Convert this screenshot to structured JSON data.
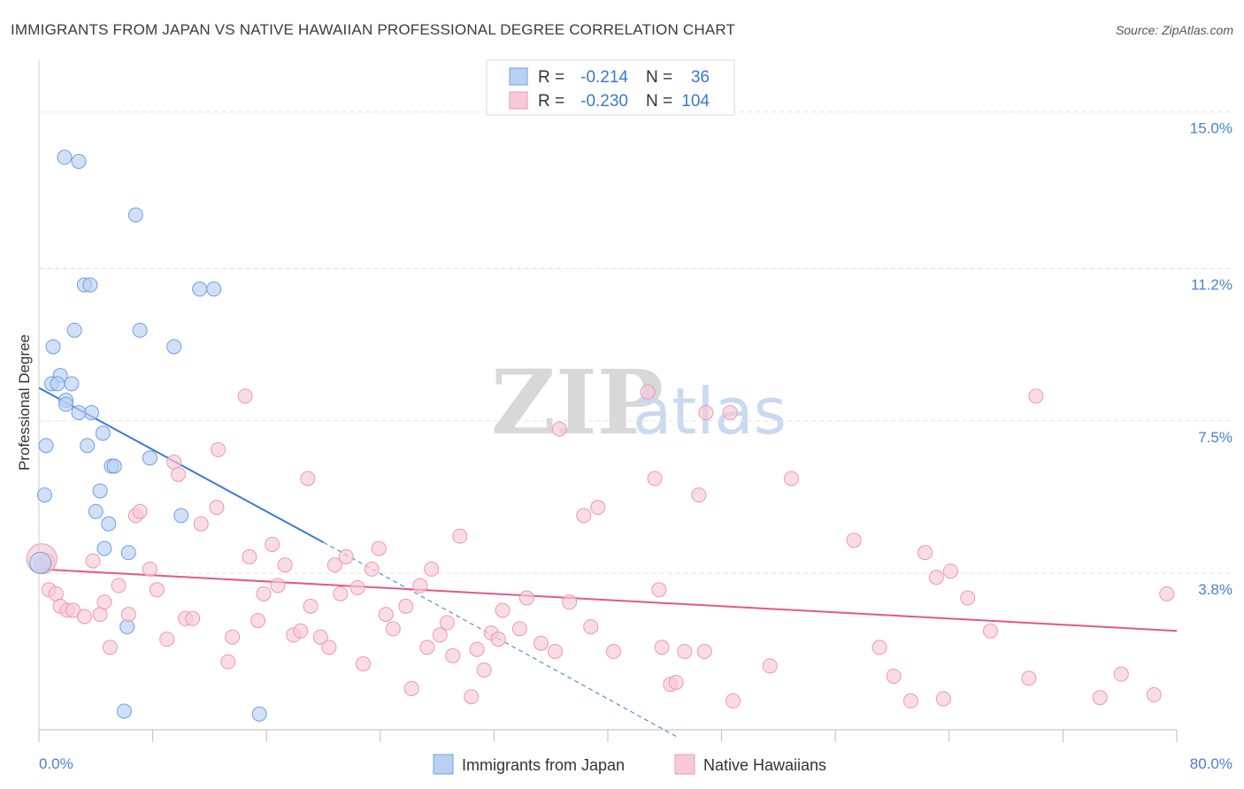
{
  "chart_data": {
    "type": "scatter",
    "title": "IMMIGRANTS FROM JAPAN VS NATIVE HAWAIIAN PROFESSIONAL DEGREE CORRELATION CHART",
    "source": "Source: ZipAtlas.com",
    "ylabel": "Professional Degree",
    "xlabel": "",
    "xlim": [
      0,
      80
    ],
    "ylim": [
      0,
      16
    ],
    "x_tick_labels": [
      "0.0%",
      "80.0%"
    ],
    "y_ticks": [
      3.8,
      7.5,
      11.2,
      15.0
    ],
    "y_tick_labels": [
      "3.8%",
      "7.5%",
      "11.2%",
      "15.0%"
    ],
    "grid": true,
    "legend": {
      "position": "top-center",
      "entries": [
        {
          "r_label": "R =",
          "r_value": "-0.214",
          "n_label": "N =",
          "n_value": "36"
        },
        {
          "r_label": "R =",
          "r_value": "-0.230",
          "n_label": "N =",
          "n_value": "104"
        }
      ]
    },
    "watermark": {
      "zip": "ZIP",
      "atlas": "atlas"
    },
    "series": [
      {
        "name": "Immigrants from Japan",
        "color": "#6fa0e6",
        "fill": "#b8d0f3",
        "line_color": "#3a78d6",
        "trend": {
          "x0": 0,
          "y0": 8.3,
          "x1": 20,
          "y1": 4.55,
          "dash_to_x": 45,
          "dash_to_y": -0.2
        },
        "points": [
          [
            1.8,
            13.9
          ],
          [
            2.8,
            13.8
          ],
          [
            6.8,
            12.5
          ],
          [
            3.2,
            10.8
          ],
          [
            3.6,
            10.8
          ],
          [
            11.3,
            10.7
          ],
          [
            12.3,
            10.7
          ],
          [
            2.5,
            9.7
          ],
          [
            7.1,
            9.7
          ],
          [
            1.0,
            9.3
          ],
          [
            9.5,
            9.3
          ],
          [
            1.5,
            8.6
          ],
          [
            0.9,
            8.4
          ],
          [
            1.3,
            8.4
          ],
          [
            2.3,
            8.4
          ],
          [
            1.9,
            8.0
          ],
          [
            1.9,
            7.9
          ],
          [
            3.7,
            7.7
          ],
          [
            2.8,
            7.7
          ],
          [
            4.5,
            7.2
          ],
          [
            0.5,
            6.9
          ],
          [
            3.4,
            6.9
          ],
          [
            7.8,
            6.6
          ],
          [
            5.1,
            6.4
          ],
          [
            5.3,
            6.4
          ],
          [
            4.3,
            5.8
          ],
          [
            0.4,
            5.7
          ],
          [
            4.0,
            5.3
          ],
          [
            4.9,
            5.0
          ],
          [
            10.0,
            5.2
          ],
          [
            4.6,
            4.4
          ],
          [
            6.3,
            4.3
          ],
          [
            0.2,
            4.0
          ],
          [
            6.2,
            2.5
          ],
          [
            6.0,
            0.45
          ],
          [
            15.5,
            0.38
          ]
        ]
      },
      {
        "name": "Native Hawaiians",
        "color": "#ef97b2",
        "fill": "#f8c9d7",
        "line_color": "#e2578b",
        "trend": {
          "x0": 0,
          "y0": 3.9,
          "x1": 80,
          "y1": 2.4
        },
        "points": [
          [
            0.6,
            4.1
          ],
          [
            0.7,
            3.4
          ],
          [
            1.2,
            3.3
          ],
          [
            1.5,
            3.0
          ],
          [
            2.0,
            2.9
          ],
          [
            2.4,
            2.9
          ],
          [
            3.2,
            2.75
          ],
          [
            3.8,
            4.1
          ],
          [
            4.3,
            2.8
          ],
          [
            4.6,
            3.1
          ],
          [
            5.0,
            2.0
          ],
          [
            5.6,
            3.5
          ],
          [
            6.3,
            2.8
          ],
          [
            6.8,
            5.2
          ],
          [
            7.1,
            5.3
          ],
          [
            7.8,
            3.9
          ],
          [
            8.3,
            3.4
          ],
          [
            9.0,
            2.2
          ],
          [
            9.5,
            6.5
          ],
          [
            9.8,
            6.2
          ],
          [
            10.3,
            2.7
          ],
          [
            10.8,
            2.7
          ],
          [
            11.4,
            5.0
          ],
          [
            12.5,
            5.4
          ],
          [
            12.6,
            6.8
          ],
          [
            13.3,
            1.65
          ],
          [
            13.6,
            2.25
          ],
          [
            14.5,
            8.1
          ],
          [
            14.8,
            4.2
          ],
          [
            15.4,
            2.65
          ],
          [
            15.8,
            3.3
          ],
          [
            16.4,
            4.5
          ],
          [
            16.8,
            3.5
          ],
          [
            17.3,
            4.0
          ],
          [
            17.9,
            2.3
          ],
          [
            18.4,
            2.4
          ],
          [
            18.9,
            6.1
          ],
          [
            19.1,
            3.0
          ],
          [
            19.8,
            2.25
          ],
          [
            20.4,
            2.0
          ],
          [
            20.8,
            4.0
          ],
          [
            21.2,
            3.3
          ],
          [
            21.6,
            4.2
          ],
          [
            22.4,
            3.45
          ],
          [
            22.8,
            1.6
          ],
          [
            23.4,
            3.9
          ],
          [
            23.9,
            4.4
          ],
          [
            24.4,
            2.8
          ],
          [
            24.9,
            2.45
          ],
          [
            25.8,
            3.0
          ],
          [
            26.2,
            1.0
          ],
          [
            26.8,
            3.5
          ],
          [
            27.3,
            2.0
          ],
          [
            27.6,
            3.9
          ],
          [
            28.2,
            2.3
          ],
          [
            28.7,
            2.6
          ],
          [
            29.1,
            1.8
          ],
          [
            29.6,
            4.7
          ],
          [
            30.4,
            0.8
          ],
          [
            30.8,
            1.95
          ],
          [
            31.3,
            1.45
          ],
          [
            31.8,
            2.35
          ],
          [
            32.3,
            2.2
          ],
          [
            32.6,
            2.9
          ],
          [
            33.8,
            2.45
          ],
          [
            34.3,
            3.2
          ],
          [
            35.3,
            2.1
          ],
          [
            36.3,
            1.9
          ],
          [
            36.6,
            7.3
          ],
          [
            37.3,
            3.1
          ],
          [
            38.3,
            5.2
          ],
          [
            38.8,
            2.5
          ],
          [
            39.3,
            5.4
          ],
          [
            40.4,
            1.9
          ],
          [
            42.8,
            8.2
          ],
          [
            43.3,
            6.1
          ],
          [
            43.6,
            3.4
          ],
          [
            43.8,
            2.0
          ],
          [
            44.4,
            1.1
          ],
          [
            44.8,
            1.15
          ],
          [
            45.4,
            1.9
          ],
          [
            46.4,
            5.7
          ],
          [
            46.8,
            1.9
          ],
          [
            46.9,
            7.7
          ],
          [
            48.8,
            0.7
          ],
          [
            48.6,
            7.7
          ],
          [
            51.4,
            1.55
          ],
          [
            52.9,
            6.1
          ],
          [
            57.3,
            4.6
          ],
          [
            59.1,
            2.0
          ],
          [
            60.1,
            1.3
          ],
          [
            61.3,
            0.7
          ],
          [
            62.3,
            4.3
          ],
          [
            63.1,
            3.7
          ],
          [
            63.6,
            0.75
          ],
          [
            64.1,
            3.85
          ],
          [
            65.3,
            3.2
          ],
          [
            66.9,
            2.4
          ],
          [
            69.6,
            1.25
          ],
          [
            70.1,
            8.1
          ],
          [
            74.6,
            0.78
          ],
          [
            76.1,
            1.35
          ],
          [
            78.4,
            0.85
          ],
          [
            79.3,
            3.3
          ]
        ]
      }
    ]
  }
}
